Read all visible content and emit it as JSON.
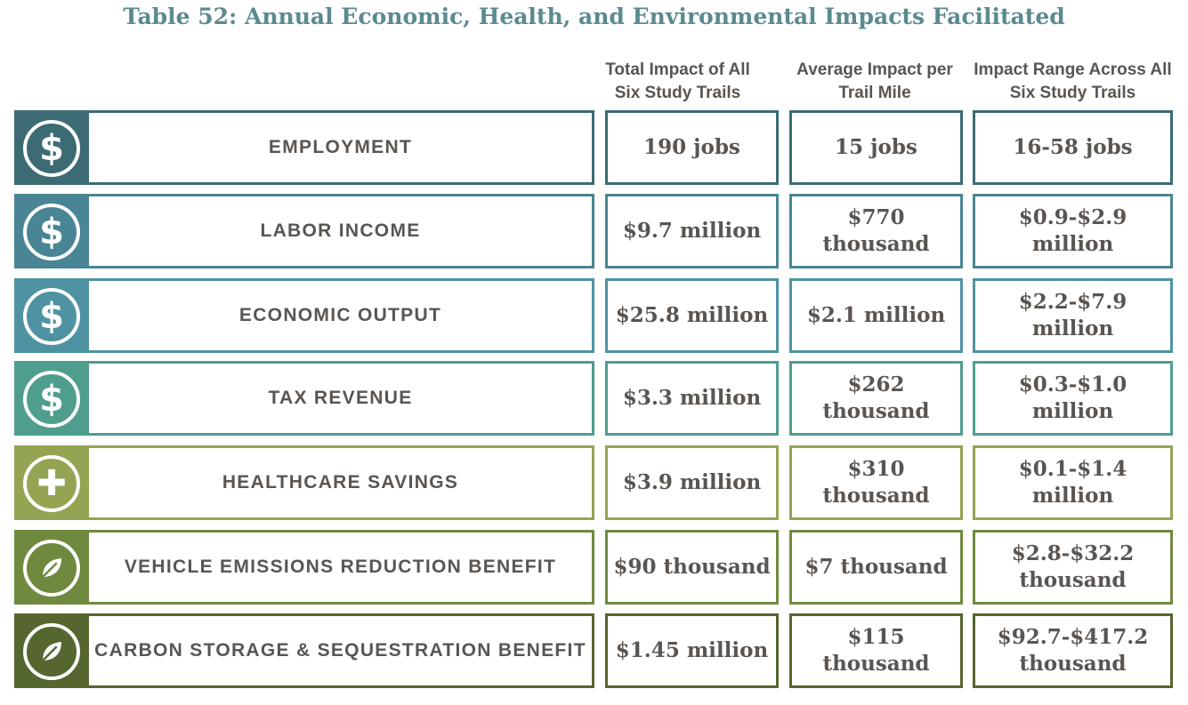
{
  "title": "Table 52: Annual Economic, Health, and Environmental Impacts Facilitated",
  "columns": {
    "total": "Total Impact of All Six Study Trails",
    "average": "Average Impact per Trail Mile",
    "range": "Impact Range Across All Six Study Trails"
  },
  "rows": [
    {
      "label": "EMPLOYMENT",
      "icon": "dollar-icon",
      "glyph": "$",
      "color": "#3c6b74",
      "total": "190 jobs",
      "average": "15 jobs",
      "range": "16-58 jobs"
    },
    {
      "label": "LABOR INCOME",
      "icon": "dollar-icon",
      "glyph": "$",
      "color": "#4a8595",
      "total": "$9.7 million",
      "average": "$770 thousand",
      "range": "$0.9-$2.9 million"
    },
    {
      "label": "ECONOMIC OUTPUT",
      "icon": "dollar-icon",
      "glyph": "$",
      "color": "#4f93a3",
      "total": "$25.8 million",
      "average": "$2.1 million",
      "range": "$2.2-$7.9 million"
    },
    {
      "label": "TAX REVENUE",
      "icon": "dollar-icon",
      "glyph": "$",
      "color": "#4f9e8d",
      "total": "$3.3 million",
      "average": "$262 thousand",
      "range": "$0.3-$1.0 million"
    },
    {
      "label": "HEALTHCARE SAVINGS",
      "icon": "plus-icon",
      "glyph": "✚",
      "color": "#93a553",
      "total": "$3.9 million",
      "average": "$310 thousand",
      "range": "$0.1-$1.4 million"
    },
    {
      "label": "VEHICLE EMISSIONS REDUCTION BENEFIT",
      "icon": "leaf-icon",
      "glyph": "",
      "color": "#6f8a3e",
      "total": "$90 thousand",
      "average": "$7 thousand",
      "range": "$2.8-$32.2 thousand"
    },
    {
      "label": "CARBON STORAGE & SEQUESTRATION BENEFIT",
      "icon": "leaf-icon",
      "glyph": "",
      "color": "#55662e",
      "total": "$1.45 million",
      "average": "$115 thousand",
      "range": "$92.7-$417.2 thousand"
    }
  ]
}
